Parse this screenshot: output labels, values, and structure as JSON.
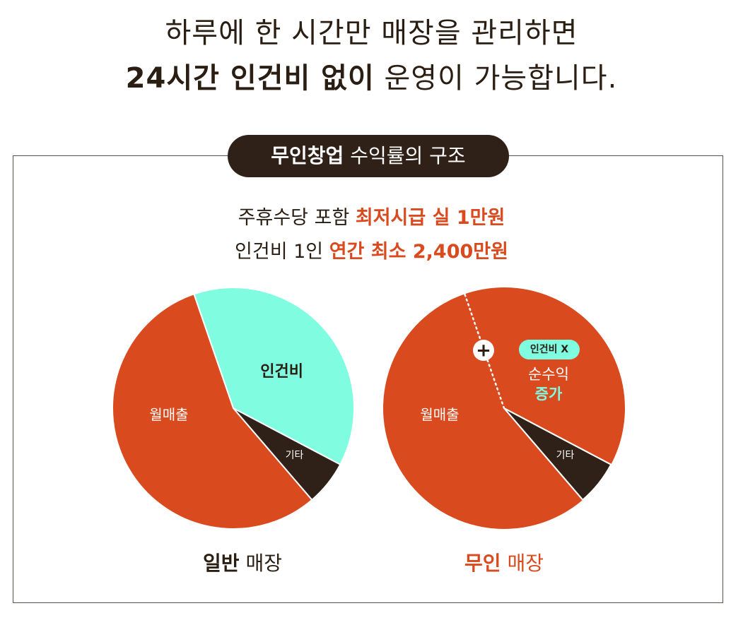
{
  "headline": {
    "line1": "하루에 한 시간만 매장을 관리하면",
    "line2_bold": "24시간 인건비 없이",
    "line2_rest": " 운영이 가능합니다."
  },
  "box": {
    "title_bold": "무인창업",
    "title_rest": " 수익률의 구조",
    "line1_prefix": "주휴수당 포함 ",
    "line1_highlight": "최저시급 실 1만원",
    "line2_prefix": "인건비 1인 ",
    "line2_highlight": "연간 최소 2,400만원"
  },
  "captions": {
    "left_bold": "일반",
    "left_rest": " 매장",
    "right_bold": "무인",
    "right_rest": " 매장"
  },
  "colors": {
    "revenue": "#d94b1f",
    "labor": "#80fde0",
    "other": "#2f2118",
    "dark_text": "#2a1d12",
    "accent": "#d94b1f",
    "teal": "#3fd1b4"
  },
  "chart_data": [
    {
      "type": "pie",
      "title": "일반 매장",
      "slices": [
        {
          "label": "인건비",
          "value": 38
        },
        {
          "label": "기타",
          "value": 6
        },
        {
          "label": "월매출",
          "value": 56
        }
      ]
    },
    {
      "type": "pie",
      "title": "무인 매장",
      "slices": [
        {
          "label": "순수익 증가",
          "value": 38
        },
        {
          "label": "기타",
          "value": 6
        },
        {
          "label": "월매출",
          "value": 56
        }
      ],
      "annotations": {
        "plus": "+",
        "badge": "인건비 X",
        "text1": "순수익",
        "text2": "증가"
      }
    }
  ]
}
